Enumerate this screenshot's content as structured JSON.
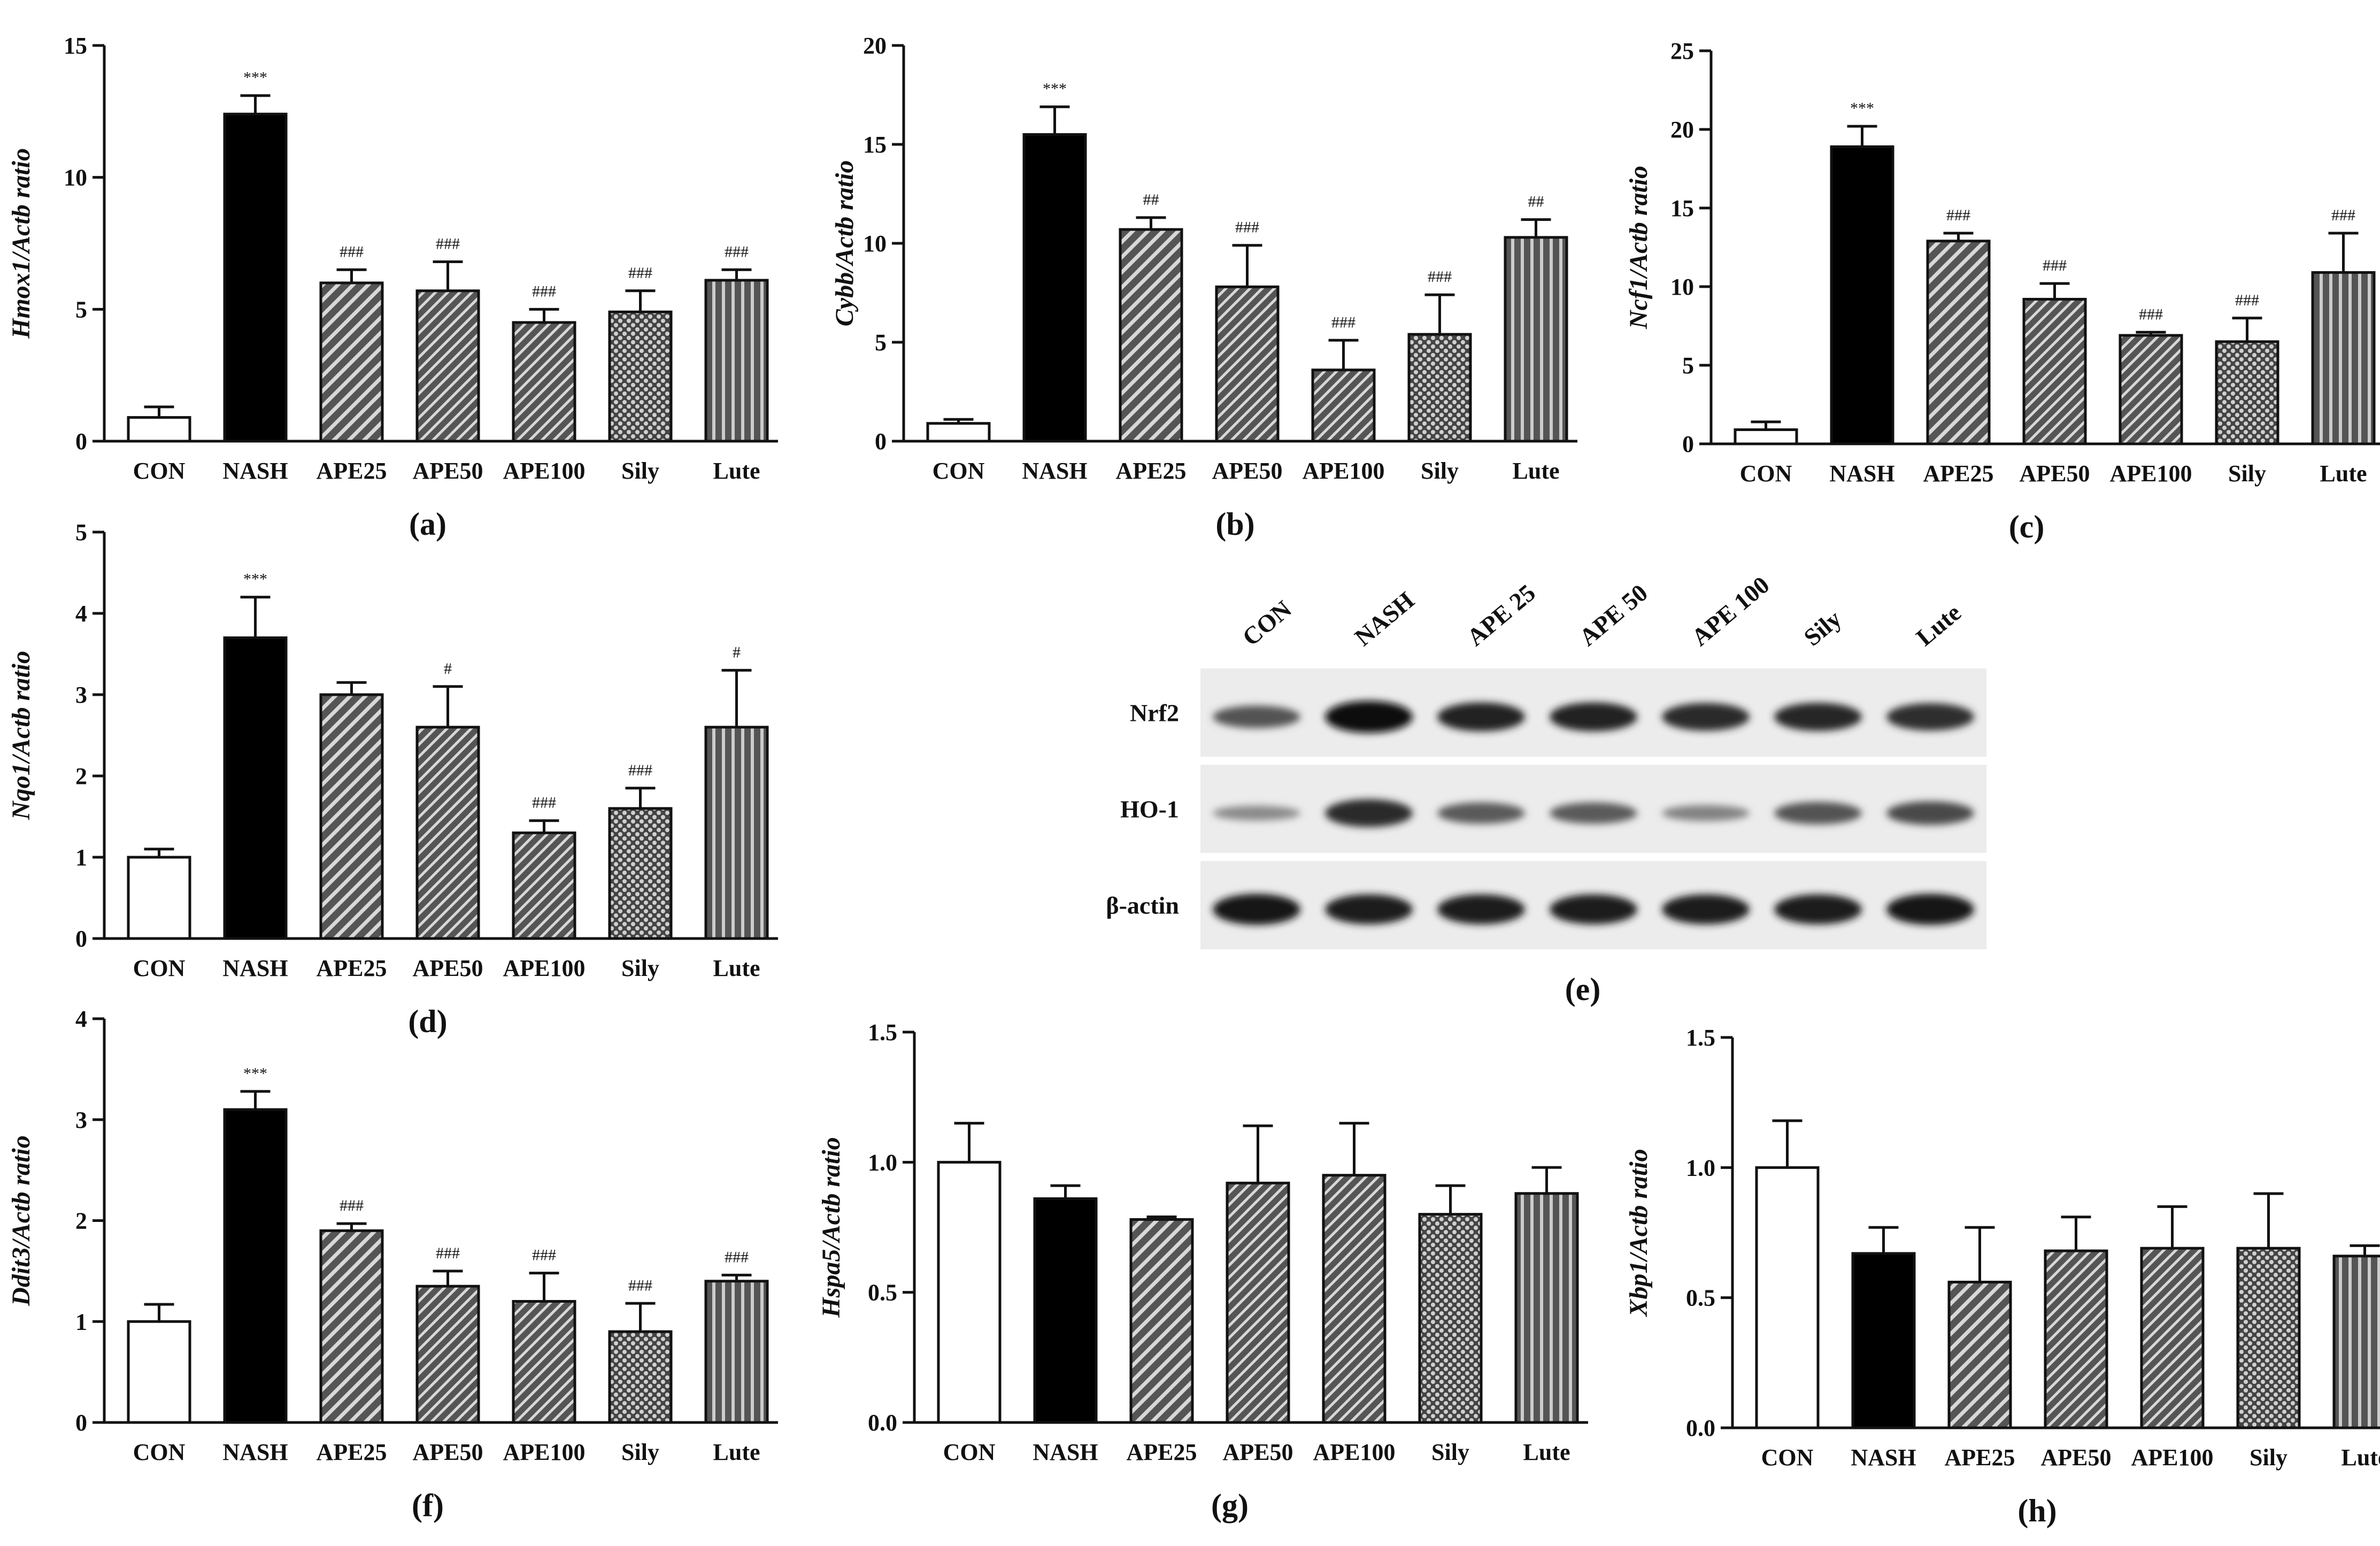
{
  "categories": [
    "CON",
    "NASH",
    "APE25",
    "APE50",
    "APE100",
    "Sily",
    "Lute"
  ],
  "chart_data": [
    {
      "id": "a",
      "type": "bar",
      "panel_label": "(a)",
      "ylabel_gene": "Hmox1",
      "ylabel_suffix": "/Actb ratio",
      "ylim": [
        0,
        15
      ],
      "yticks": [
        0,
        5,
        10,
        15
      ],
      "tick_labels": [
        "0",
        "5",
        "10",
        "15"
      ],
      "values": [
        0.9,
        12.4,
        6.0,
        5.7,
        4.5,
        4.9,
        6.1
      ],
      "errors": [
        0.4,
        0.7,
        0.5,
        1.1,
        0.5,
        0.8,
        0.4
      ],
      "significance": [
        "",
        "***",
        "###",
        "###",
        "###",
        "###",
        "###"
      ]
    },
    {
      "id": "b",
      "type": "bar",
      "panel_label": "(b)",
      "ylabel_gene": "Cybb",
      "ylabel_suffix": "/Actb ratio",
      "ylim": [
        0,
        20
      ],
      "yticks": [
        0,
        5,
        10,
        15,
        20
      ],
      "tick_labels": [
        "0",
        "5",
        "10",
        "15",
        "20"
      ],
      "values": [
        0.9,
        15.5,
        10.7,
        7.8,
        3.6,
        5.4,
        10.3
      ],
      "errors": [
        0.2,
        1.4,
        0.6,
        2.1,
        1.5,
        2.0,
        0.9
      ],
      "significance": [
        "",
        "***",
        "##",
        "###",
        "###",
        "###",
        "##"
      ]
    },
    {
      "id": "c",
      "type": "bar",
      "panel_label": "(c)",
      "ylabel_gene": "Ncf1",
      "ylabel_suffix": "/Actb ratio",
      "ylim": [
        0,
        25
      ],
      "yticks": [
        0,
        5,
        10,
        15,
        20,
        25
      ],
      "tick_labels": [
        "0",
        "5",
        "10",
        "15",
        "20",
        "25"
      ],
      "values": [
        0.9,
        18.9,
        12.9,
        9.2,
        6.9,
        6.5,
        10.9
      ],
      "errors": [
        0.5,
        1.3,
        0.5,
        1.0,
        0.2,
        1.5,
        2.5
      ],
      "significance": [
        "",
        "***",
        "###",
        "###",
        "###",
        "###",
        "###"
      ]
    },
    {
      "id": "d",
      "type": "bar",
      "panel_label": "(d)",
      "ylabel_gene": "Nqo1",
      "ylabel_suffix": "/Actb ratio",
      "ylim": [
        0,
        5
      ],
      "yticks": [
        0,
        1,
        2,
        3,
        4,
        5
      ],
      "tick_labels": [
        "0",
        "1",
        "2",
        "3",
        "4",
        "5"
      ],
      "values": [
        1.0,
        3.7,
        3.0,
        2.6,
        1.3,
        1.6,
        2.6
      ],
      "errors": [
        0.1,
        0.5,
        0.15,
        0.5,
        0.15,
        0.25,
        0.7
      ],
      "significance": [
        "",
        "***",
        "",
        "#",
        "###",
        "###",
        "#"
      ]
    },
    {
      "id": "f",
      "type": "bar",
      "panel_label": "(f)",
      "ylabel_gene": "Ddit3",
      "ylabel_suffix": "/Actb ratio",
      "ylim": [
        0,
        4
      ],
      "yticks": [
        0,
        1,
        2,
        3,
        4
      ],
      "tick_labels": [
        "0",
        "1",
        "2",
        "3",
        "4"
      ],
      "values": [
        1.0,
        3.1,
        1.9,
        1.35,
        1.2,
        0.9,
        1.4
      ],
      "errors": [
        0.17,
        0.18,
        0.07,
        0.15,
        0.28,
        0.28,
        0.06
      ],
      "significance": [
        "",
        "***",
        "###",
        "###",
        "###",
        "###",
        "###"
      ]
    },
    {
      "id": "g",
      "type": "bar",
      "panel_label": "(g)",
      "ylabel_gene": "Hspa5",
      "ylabel_suffix": "/Actb ratio",
      "ylim": [
        0,
        1.5
      ],
      "yticks": [
        0,
        0.5,
        1.0,
        1.5
      ],
      "tick_labels": [
        "0.0",
        "0.5",
        "1.0",
        "1.5"
      ],
      "values": [
        1.0,
        0.86,
        0.78,
        0.92,
        0.95,
        0.8,
        0.88
      ],
      "errors": [
        0.15,
        0.05,
        0.01,
        0.22,
        0.2,
        0.11,
        0.1
      ],
      "significance": [
        "",
        "",
        "",
        "",
        "",
        "",
        ""
      ]
    },
    {
      "id": "h",
      "type": "bar",
      "panel_label": "(h)",
      "ylabel_gene": "Xbp1",
      "ylabel_suffix": "/Actb ratio",
      "ylim": [
        0,
        1.5
      ],
      "yticks": [
        0,
        0.5,
        1.0,
        1.5
      ],
      "tick_labels": [
        "0.0",
        "0.5",
        "1.0",
        "1.5"
      ],
      "values": [
        1.0,
        0.67,
        0.56,
        0.68,
        0.69,
        0.69,
        0.66
      ],
      "errors": [
        0.18,
        0.1,
        0.21,
        0.13,
        0.16,
        0.21,
        0.04
      ],
      "significance": [
        "",
        "",
        "",
        "",
        "",
        "",
        ""
      ]
    }
  ],
  "blot": {
    "panel_label": "(e)",
    "lanes": [
      "CON",
      "NASH",
      "APE 25",
      "APE 50",
      "APE 100",
      "Sily",
      "Lute"
    ],
    "rows": [
      {
        "label": "Nrf2",
        "intensity": [
          0.55,
          1.0,
          0.85,
          0.85,
          0.8,
          0.82,
          0.78
        ]
      },
      {
        "label": "HO-1",
        "intensity": [
          0.2,
          0.8,
          0.5,
          0.5,
          0.25,
          0.55,
          0.6
        ]
      },
      {
        "label": "β-actin",
        "intensity": [
          0.95,
          0.9,
          0.9,
          0.9,
          0.9,
          0.9,
          0.95
        ]
      }
    ]
  },
  "fills": [
    "white",
    "black",
    "hatch-wide",
    "hatch-narrow",
    "hatch-narrow",
    "crosshatch",
    "vstripe"
  ],
  "colors": {
    "axis": "#111111",
    "bar_fill_dark": "#555555",
    "blot_background": "#ececec"
  }
}
